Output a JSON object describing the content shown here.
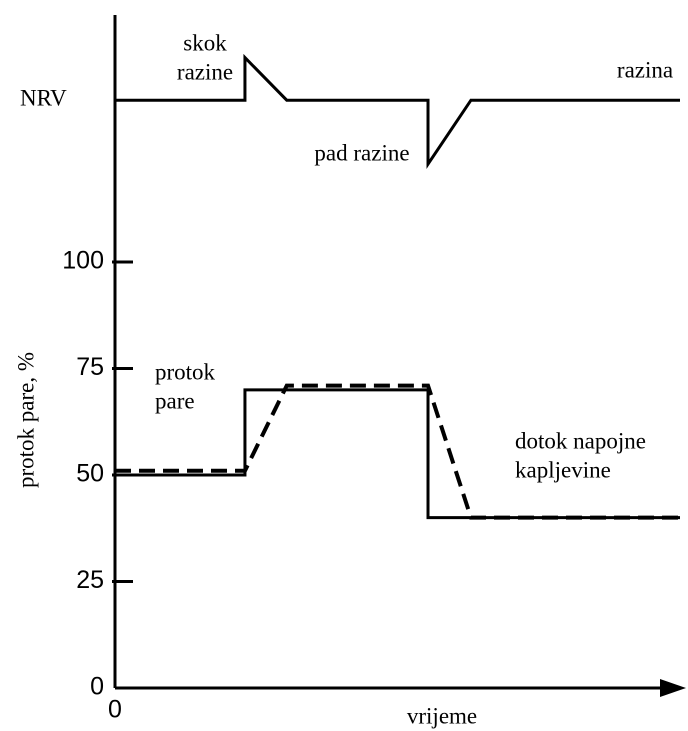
{
  "chart_data": {
    "type": "line",
    "ylabel": "protok pare, %",
    "xlabel": "vrijeme",
    "xlim": [
      0,
      100
    ],
    "ylim": [
      0,
      158
    ],
    "xticks": [
      0
    ],
    "yticks": [
      0,
      25,
      50,
      75,
      100
    ],
    "nrv": {
      "text": "NRV",
      "value": 138
    },
    "series": [
      {
        "name": "razina",
        "color": "#000000",
        "style": "solid",
        "x": [
          0,
          23,
          23,
          30.4,
          55.4,
          55.4,
          63,
          100
        ],
        "values": [
          138,
          138,
          148,
          138,
          138,
          123,
          138,
          138
        ]
      },
      {
        "name": "protok pare",
        "color": "#000000",
        "style": "solid",
        "x": [
          0,
          23,
          23,
          55.4,
          55.4,
          100
        ],
        "values": [
          50,
          50,
          70,
          70,
          40,
          40
        ]
      },
      {
        "name": "dotok napojne kapljevine",
        "color": "#000000",
        "style": "dashed",
        "x": [
          0,
          23,
          30.4,
          55.4,
          63,
          100
        ],
        "values": [
          51,
          51,
          71,
          71,
          40,
          40
        ]
      }
    ],
    "annotations": [
      {
        "lines": [
          "skok",
          "razine"
        ]
      },
      {
        "lines": [
          "razina"
        ]
      },
      {
        "lines": [
          "pad razine"
        ]
      },
      {
        "lines": [
          "protok",
          "pare"
        ]
      },
      {
        "lines": [
          "dotok napojne",
          "kapljevine"
        ]
      }
    ]
  }
}
